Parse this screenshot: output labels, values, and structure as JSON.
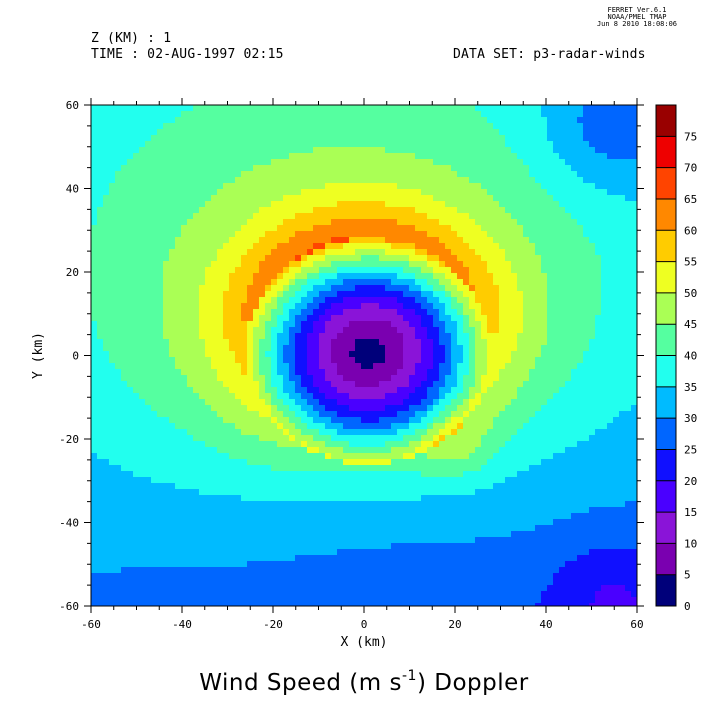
{
  "header": {
    "z_label": "Z (KM) : 1",
    "time_label": "TIME : 02-AUG-1997 02:15",
    "dataset_label": "DATA SET: p3-radar-winds",
    "ferret_line1": "FERRET  Ver.6.1",
    "ferret_line2": "NOAA/PMEL TMAP",
    "ferret_line3": "Jun  8 2010 18:08:06"
  },
  "chart_data": {
    "type": "heatmap",
    "title_main": "Wind Speed (m s",
    "title_sup": "-1",
    "title_end": ") Doppler",
    "xlabel": "X (km)",
    "ylabel": "Y (km)",
    "xlim": [
      -60,
      60
    ],
    "ylim": [
      -60,
      60
    ],
    "x_ticks": [
      -60,
      -40,
      -20,
      0,
      20,
      40,
      60
    ],
    "y_ticks": [
      -60,
      -40,
      -20,
      0,
      20,
      40,
      60
    ],
    "colorbar": {
      "levels": [
        0,
        5,
        10,
        15,
        20,
        25,
        30,
        35,
        40,
        45,
        50,
        55,
        60,
        65,
        70,
        75
      ],
      "colors": [
        "#00007a",
        "#7a00b0",
        "#8a14d8",
        "#4a00ff",
        "#1010ff",
        "#0066ff",
        "#00bbff",
        "#22ffee",
        "#55ffa0",
        "#aaff55",
        "#eeff22",
        "#ffcc00",
        "#ff8800",
        "#ff4400",
        "#ee0000",
        "#990000"
      ]
    },
    "field": {
      "center": [
        1,
        1
      ],
      "eye_radius": 3,
      "rmw": 27,
      "peak_speed": 58,
      "calm_speed": 3,
      "outer_speed": 30
    }
  }
}
